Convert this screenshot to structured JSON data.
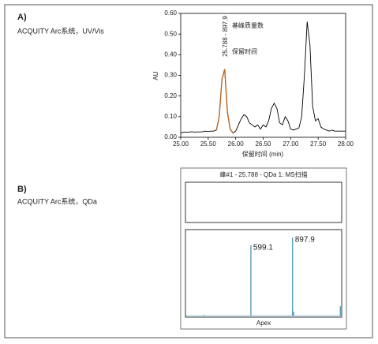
{
  "panels": [
    {
      "label": "A)",
      "subtitle": "ACQUITY Arc系统，UV/Vis"
    },
    {
      "label": "B)",
      "subtitle": "ACQUITY Arc系统，QDa"
    }
  ],
  "chart_data": [
    {
      "type": "line",
      "ylabel": "AU",
      "xlabel": "保留时间 (min)",
      "annotations": [
        "25.788 - 897.9",
        "基峰质量数",
        "保留时间"
      ],
      "xlim": [
        25,
        28
      ],
      "ylim": [
        0,
        0.6
      ],
      "xticks": [
        {
          "value": 25,
          "label": "25.00"
        },
        {
          "value": 25.5,
          "label": "25.50"
        },
        {
          "value": 26,
          "label": "26.00"
        },
        {
          "value": 26.5,
          "label": "26.50"
        },
        {
          "value": 27,
          "label": "27.00"
        },
        {
          "value": 27.5,
          "label": "27.50"
        },
        {
          "value": 28,
          "label": "28.00"
        }
      ],
      "yticks": [
        {
          "value": 0,
          "label": "0.00"
        },
        {
          "value": 0.1,
          "label": "0.10"
        },
        {
          "value": 0.2,
          "label": "0.20"
        },
        {
          "value": 0.3,
          "label": "0.30"
        },
        {
          "value": 0.4,
          "label": "0.40"
        },
        {
          "value": 0.5,
          "label": "0.50"
        },
        {
          "value": 0.6,
          "label": "0.60"
        }
      ],
      "x": [
        25,
        25.05,
        25.1,
        25.15,
        25.2,
        25.25,
        25.3,
        25.35,
        25.4,
        25.45,
        25.5,
        25.55,
        25.6,
        25.65,
        25.7,
        25.75,
        25.8,
        25.85,
        25.9,
        25.95,
        26,
        26.05,
        26.1,
        26.15,
        26.2,
        26.25,
        26.3,
        26.35,
        26.4,
        26.45,
        26.5,
        26.55,
        26.6,
        26.65,
        26.7,
        26.75,
        26.8,
        26.85,
        26.9,
        26.95,
        27,
        27.05,
        27.1,
        27.15,
        27.2,
        27.25,
        27.3,
        27.35,
        27.4,
        27.45,
        27.5,
        27.55,
        27.6,
        27.65,
        27.7,
        27.75,
        27.8,
        27.85,
        27.9,
        27.95,
        28
      ],
      "series": [
        {
          "color": "#000000",
          "values": [
            0.02,
            0.025,
            0.025,
            0.025,
            0.027,
            0.025,
            0.026,
            0.026,
            0.027,
            0.03,
            0.028,
            0.03,
            0.03,
            0.035,
            0.1,
            0.28,
            0.33,
            0.12,
            0.04,
            0.02,
            0.03,
            0.06,
            0.09,
            0.11,
            0.1,
            0.07,
            0.06,
            0.05,
            0.06,
            0.04,
            0.06,
            0.05,
            0.08,
            0.14,
            0.165,
            0.14,
            0.07,
            0.06,
            0.1,
            0.08,
            0.04,
            0.035,
            0.04,
            0.045,
            0.1,
            0.3,
            0.56,
            0.45,
            0.15,
            0.08,
            0.09,
            0.05,
            0.04,
            0.035,
            0.03,
            0.035,
            0.03,
            0.03,
            0.03,
            0.03,
            0.03
          ]
        },
        {
          "color": "#c0651f",
          "values": [
            null,
            null,
            null,
            null,
            null,
            null,
            null,
            null,
            null,
            null,
            null,
            null,
            null,
            0.035,
            0.1,
            0.28,
            0.33,
            0.12,
            0.04,
            0.02,
            null,
            null,
            null,
            null,
            null,
            null,
            null,
            null,
            null,
            null,
            null,
            null,
            null,
            null,
            null,
            null,
            null,
            null,
            null,
            null,
            null,
            null,
            null,
            null,
            null,
            null,
            null,
            null,
            null,
            null,
            null,
            null,
            null,
            null,
            null,
            null,
            null,
            null,
            null,
            null,
            null
          ]
        }
      ]
    },
    {
      "type": "spectrum",
      "title": "峰#1 - 25.788 - QDa 1:  MS扫描",
      "xlabel": "Apex",
      "xlim": [
        130,
        1250
      ],
      "ylim": [
        0,
        100
      ],
      "color": "#3a8fb0",
      "series": [
        {
          "x": [
            260,
            599.1,
            897.9,
            905,
            1240
          ],
          "values": [
            1,
            90,
            100,
            5,
            12
          ]
        }
      ],
      "labeled_peaks": [
        1,
        2
      ]
    }
  ]
}
